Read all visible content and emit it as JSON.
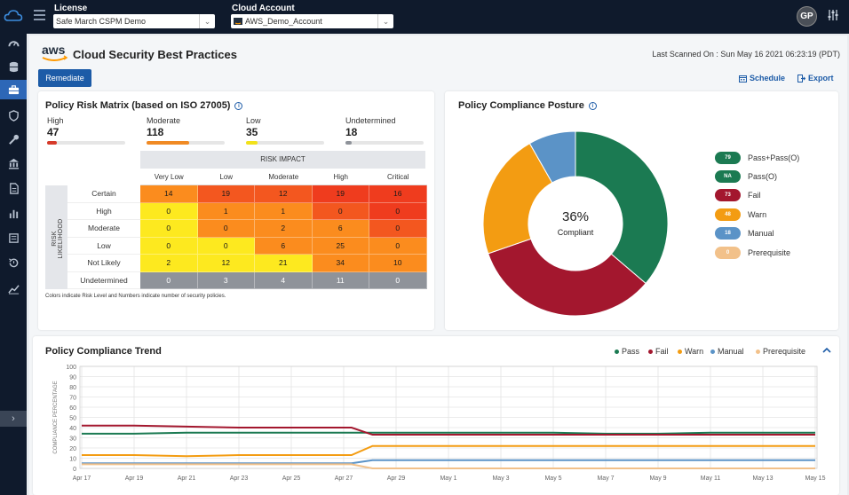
{
  "topbar": {
    "license_label": "License",
    "license_value": "Safe March CSPM Demo",
    "account_label": "Cloud Account",
    "account_value": "AWS_Demo_Account",
    "avatar_initials": "GP"
  },
  "header": {
    "title": "Cloud Security Best Practices",
    "last_scanned": "Last Scanned On : Sun May 16 2021 06:23:19 (PDT)",
    "remediate": "Remediate",
    "schedule": "Schedule",
    "export": "Export"
  },
  "risk": {
    "title": "Policy Risk Matrix (based on ISO 27005)",
    "counters": [
      {
        "label": "High",
        "value": "47",
        "fraction": 0.13,
        "color": "#d63a2a"
      },
      {
        "label": "Moderate",
        "value": "118",
        "fraction": 0.55,
        "color": "#f08a24"
      },
      {
        "label": "Low",
        "value": "35",
        "fraction": 0.15,
        "color": "#f2e21a"
      },
      {
        "label": "Undetermined",
        "value": "18",
        "fraction": 0.08,
        "color": "#8f939a"
      }
    ],
    "impact_title": "RISK IMPACT",
    "likelihood_title": "RISK LIKELIHOOD",
    "columns": [
      "Very Low",
      "Low",
      "Moderate",
      "High",
      "Critical"
    ],
    "rows": [
      {
        "label": "Certain",
        "values": [
          "14",
          "19",
          "12",
          "19",
          "16"
        ]
      },
      {
        "label": "High",
        "values": [
          "0",
          "1",
          "1",
          "0",
          "0"
        ]
      },
      {
        "label": "Moderate",
        "values": [
          "0",
          "0",
          "2",
          "6",
          "0"
        ]
      },
      {
        "label": "Low",
        "values": [
          "0",
          "0",
          "6",
          "25",
          "0"
        ]
      },
      {
        "label": "Not Likely",
        "values": [
          "2",
          "12",
          "21",
          "34",
          "10"
        ]
      },
      {
        "label": "Undetermined",
        "values": [
          "0",
          "3",
          "4",
          "11",
          "0"
        ]
      }
    ],
    "note": "Colors indicate Risk Level and Numbers indicate number of security policies."
  },
  "posture": {
    "title": "Policy Compliance Posture",
    "percent": "36%",
    "sub": "Compliant",
    "legend": [
      {
        "badge": "79",
        "label": "Pass+Pass(O)",
        "color": "#1b7a52"
      },
      {
        "badge": "NA",
        "label": "Pass(O)",
        "color": "#1b7a52"
      },
      {
        "badge": "73",
        "label": "Fail",
        "color": "#a3172e"
      },
      {
        "badge": "48",
        "label": "Warn",
        "color": "#f39c12"
      },
      {
        "badge": "18",
        "label": "Manual",
        "color": "#5b93c7"
      },
      {
        "badge": "0",
        "label": "Prerequisite",
        "color": "#f2c18a"
      }
    ]
  },
  "chart_data": {
    "type": "line",
    "title": "Policy Compliance Trend",
    "ylabel": "COMPLIANCE PERCENTAGE",
    "xlabel": "",
    "ylim": [
      0,
      100
    ],
    "yticks": [
      0,
      10,
      20,
      30,
      40,
      50,
      60,
      70,
      80,
      90,
      100
    ],
    "x": [
      "Apr 17",
      "Apr 19",
      "Apr 21",
      "Apr 23",
      "Apr 25",
      "Apr 27",
      "Apr 29",
      "May 1",
      "May 3",
      "May 5",
      "May 7",
      "May 9",
      "May 11",
      "May 13",
      "May 15"
    ],
    "legend_position": "top-right",
    "series": [
      {
        "name": "Pass",
        "color": "#1b7a52",
        "values": [
          34,
          34,
          35,
          35,
          35,
          35,
          35,
          35,
          35,
          35,
          34,
          34,
          35,
          35,
          35
        ]
      },
      {
        "name": "Fail",
        "color": "#a3172e",
        "values": [
          42,
          42,
          41,
          40,
          40,
          40,
          33,
          33,
          33,
          33,
          33,
          33,
          33,
          33,
          33
        ]
      },
      {
        "name": "Warn",
        "color": "#f39c12",
        "values": [
          13,
          13,
          12,
          13,
          13,
          13,
          22,
          22,
          22,
          22,
          22,
          22,
          22,
          22,
          22
        ]
      },
      {
        "name": "Manual",
        "color": "#5b93c7",
        "values": [
          5,
          5,
          5,
          5,
          5,
          5,
          8,
          8,
          8,
          8,
          8,
          8,
          8,
          8,
          8
        ]
      },
      {
        "name": "Prerequisite",
        "color": "#f2c18a",
        "values": [
          4,
          4,
          4,
          4,
          4,
          4,
          0,
          0,
          0,
          0,
          0,
          0,
          0,
          0,
          0
        ]
      }
    ]
  }
}
